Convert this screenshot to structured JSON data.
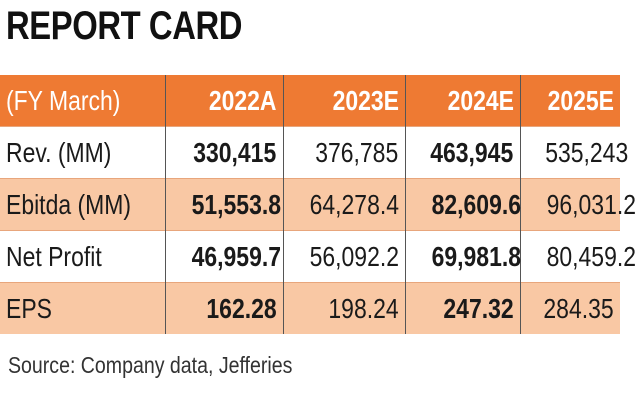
{
  "title": "REPORT CARD",
  "chart_data": {
    "type": "table",
    "header": [
      "(FY March)",
      "2022A",
      "2023E",
      "2024E",
      "2025E"
    ],
    "rows": [
      {
        "label": "Rev. (MM)",
        "values": [
          "330,415",
          "376,785",
          "463,945",
          "535,243"
        ]
      },
      {
        "label": "Ebitda (MM)",
        "values": [
          "51,553.8",
          "64,278.4",
          "82,609.6",
          "96,031.2"
        ]
      },
      {
        "label": "Net Profit",
        "values": [
          "46,959.7",
          "56,092.2",
          "69,981.8",
          "80,459.2"
        ]
      },
      {
        "label": "EPS",
        "values": [
          "162.28",
          "198.24",
          "247.32",
          "284.35"
        ]
      }
    ]
  },
  "colors": {
    "header": "#ee7a33",
    "alt_row": "#f9c8a4"
  },
  "source": "Source: Company data, Jefferies"
}
